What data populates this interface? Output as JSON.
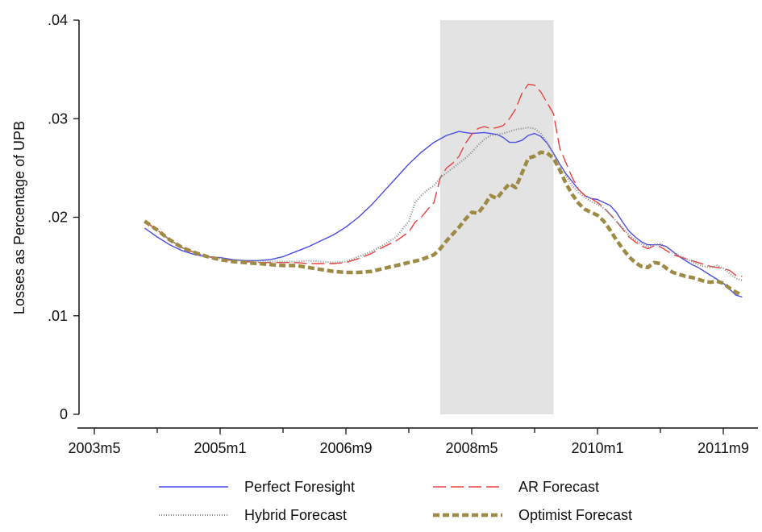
{
  "chart_data": {
    "type": "line",
    "title": "",
    "xlabel": "",
    "ylabel": "Losses as Percentage of UPB",
    "x_ticks": [
      "2003m5",
      "2005m1",
      "2006m9",
      "2008m5",
      "2010m1",
      "2011m9"
    ],
    "x_tick_values": [
      0,
      20,
      40,
      60,
      80,
      100
    ],
    "y_ticks": [
      "0",
      ".01",
      ".02",
      ".03",
      ".04"
    ],
    "y_tick_values": [
      0,
      0.01,
      0.02,
      0.03,
      0.04
    ],
    "xlim": [
      0,
      105.8
    ],
    "ylim": [
      0,
      0.04
    ],
    "grid": false,
    "shaded_period": {
      "start": "2007m12",
      "end": "2009m6",
      "start_index": 55,
      "end_index": 73
    },
    "legend": {
      "position": "bottom",
      "columns": 2
    },
    "colors": {
      "Perfect Foresight": "#4b4be8",
      "AR Forecast": "#e84040",
      "Hybrid Forecast": "#8a8a8a",
      "Optimist Forecast": "#9c8a45",
      "shade": "#e3e3e3"
    },
    "series": [
      {
        "name": "Perfect Foresight",
        "style": "solid",
        "points": [
          [
            8,
            0.0189
          ],
          [
            10,
            0.018
          ],
          [
            12,
            0.0172
          ],
          [
            14,
            0.0166
          ],
          [
            16,
            0.0162
          ],
          [
            18,
            0.016
          ],
          [
            20,
            0.0159
          ],
          [
            22,
            0.0157
          ],
          [
            24,
            0.0156
          ],
          [
            26,
            0.0156
          ],
          [
            28,
            0.0157
          ],
          [
            30,
            0.016
          ],
          [
            32,
            0.0165
          ],
          [
            34,
            0.017
          ],
          [
            36,
            0.0176
          ],
          [
            38,
            0.0182
          ],
          [
            40,
            0.019
          ],
          [
            42,
            0.02
          ],
          [
            44,
            0.0212
          ],
          [
            46,
            0.0226
          ],
          [
            48,
            0.024
          ],
          [
            50,
            0.0254
          ],
          [
            52,
            0.0266
          ],
          [
            54,
            0.0276
          ],
          [
            56,
            0.0283
          ],
          [
            58,
            0.0287
          ],
          [
            59,
            0.0286
          ],
          [
            60,
            0.0285
          ],
          [
            62,
            0.0286
          ],
          [
            64,
            0.0284
          ],
          [
            65,
            0.0281
          ],
          [
            66,
            0.0276
          ],
          [
            67,
            0.0276
          ],
          [
            68,
            0.0278
          ],
          [
            69,
            0.0283
          ],
          [
            70,
            0.0285
          ],
          [
            71,
            0.0282
          ],
          [
            72,
            0.0275
          ],
          [
            73,
            0.0265
          ],
          [
            74,
            0.0254
          ],
          [
            75,
            0.0244
          ],
          [
            76,
            0.0236
          ],
          [
            77,
            0.0228
          ],
          [
            78,
            0.0222
          ],
          [
            79,
            0.0219
          ],
          [
            80,
            0.0218
          ],
          [
            81,
            0.0215
          ],
          [
            82,
            0.0212
          ],
          [
            83,
            0.0205
          ],
          [
            84,
            0.0195
          ],
          [
            85,
            0.0186
          ],
          [
            86,
            0.018
          ],
          [
            87,
            0.0175
          ],
          [
            88,
            0.0172
          ],
          [
            89,
            0.0172
          ],
          [
            90,
            0.0172
          ],
          [
            91,
            0.017
          ],
          [
            92,
            0.0165
          ],
          [
            93,
            0.016
          ],
          [
            94,
            0.0156
          ],
          [
            95,
            0.0152
          ],
          [
            96,
            0.0149
          ],
          [
            97,
            0.0145
          ],
          [
            98,
            0.0141
          ],
          [
            99,
            0.0137
          ],
          [
            100,
            0.0133
          ],
          [
            101,
            0.0127
          ],
          [
            102,
            0.0121
          ],
          [
            103,
            0.0119
          ]
        ]
      },
      {
        "name": "AR Forecast",
        "style": "longdash",
        "points": [
          [
            8,
            0.0196
          ],
          [
            10,
            0.0187
          ],
          [
            12,
            0.0177
          ],
          [
            14,
            0.0169
          ],
          [
            16,
            0.0164
          ],
          [
            18,
            0.016
          ],
          [
            20,
            0.0158
          ],
          [
            22,
            0.0156
          ],
          [
            24,
            0.0155
          ],
          [
            26,
            0.0154
          ],
          [
            28,
            0.0154
          ],
          [
            30,
            0.0154
          ],
          [
            32,
            0.0154
          ],
          [
            34,
            0.0153
          ],
          [
            36,
            0.0153
          ],
          [
            38,
            0.0153
          ],
          [
            40,
            0.0154
          ],
          [
            42,
            0.0158
          ],
          [
            44,
            0.0163
          ],
          [
            46,
            0.017
          ],
          [
            48,
            0.0176
          ],
          [
            50,
            0.0185
          ],
          [
            51,
            0.0195
          ],
          [
            52,
            0.02
          ],
          [
            53,
            0.0208
          ],
          [
            54,
            0.0215
          ],
          [
            55,
            0.024
          ],
          [
            56,
            0.025
          ],
          [
            57,
            0.0255
          ],
          [
            58,
            0.0262
          ],
          [
            59,
            0.0275
          ],
          [
            60,
            0.0284
          ],
          [
            61,
            0.029
          ],
          [
            62,
            0.0292
          ],
          [
            63,
            0.029
          ],
          [
            64,
            0.0291
          ],
          [
            65,
            0.0293
          ],
          [
            66,
            0.03
          ],
          [
            67,
            0.031
          ],
          [
            68,
            0.0326
          ],
          [
            69,
            0.0335
          ],
          [
            70,
            0.0334
          ],
          [
            71,
            0.0327
          ],
          [
            72,
            0.0316
          ],
          [
            73,
            0.0305
          ],
          [
            74,
            0.027
          ],
          [
            75,
            0.0255
          ],
          [
            76,
            0.024
          ],
          [
            77,
            0.0228
          ],
          [
            78,
            0.0222
          ],
          [
            79,
            0.0219
          ],
          [
            80,
            0.0215
          ],
          [
            81,
            0.021
          ],
          [
            82,
            0.0203
          ],
          [
            83,
            0.0196
          ],
          [
            84,
            0.0188
          ],
          [
            85,
            0.018
          ],
          [
            86,
            0.0175
          ],
          [
            87,
            0.0171
          ],
          [
            88,
            0.0168
          ],
          [
            89,
            0.0171
          ],
          [
            90,
            0.017
          ],
          [
            91,
            0.0166
          ],
          [
            92,
            0.0162
          ],
          [
            93,
            0.016
          ],
          [
            94,
            0.0158
          ],
          [
            95,
            0.0156
          ],
          [
            96,
            0.0154
          ],
          [
            97,
            0.0152
          ],
          [
            98,
            0.015
          ],
          [
            99,
            0.0149
          ],
          [
            100,
            0.0148
          ],
          [
            101,
            0.0146
          ],
          [
            102,
            0.0141
          ],
          [
            103,
            0.014
          ]
        ]
      },
      {
        "name": "Hybrid Forecast",
        "style": "dotted",
        "points": [
          [
            8,
            0.0196
          ],
          [
            10,
            0.0187
          ],
          [
            12,
            0.0177
          ],
          [
            14,
            0.0169
          ],
          [
            16,
            0.0164
          ],
          [
            18,
            0.016
          ],
          [
            20,
            0.0158
          ],
          [
            22,
            0.0156
          ],
          [
            24,
            0.0156
          ],
          [
            26,
            0.0155
          ],
          [
            28,
            0.0155
          ],
          [
            30,
            0.0155
          ],
          [
            32,
            0.0155
          ],
          [
            34,
            0.0156
          ],
          [
            36,
            0.0155
          ],
          [
            38,
            0.0154
          ],
          [
            40,
            0.0155
          ],
          [
            42,
            0.016
          ],
          [
            44,
            0.0165
          ],
          [
            46,
            0.0172
          ],
          [
            48,
            0.018
          ],
          [
            50,
            0.0196
          ],
          [
            51,
            0.0215
          ],
          [
            52,
            0.0222
          ],
          [
            53,
            0.0228
          ],
          [
            54,
            0.0232
          ],
          [
            55,
            0.024
          ],
          [
            56,
            0.0245
          ],
          [
            57,
            0.025
          ],
          [
            58,
            0.0255
          ],
          [
            59,
            0.026
          ],
          [
            60,
            0.0266
          ],
          [
            61,
            0.0273
          ],
          [
            62,
            0.0279
          ],
          [
            63,
            0.0283
          ],
          [
            64,
            0.0284
          ],
          [
            65,
            0.0285
          ],
          [
            66,
            0.0287
          ],
          [
            67,
            0.0289
          ],
          [
            68,
            0.029
          ],
          [
            69,
            0.0291
          ],
          [
            70,
            0.029
          ],
          [
            71,
            0.0285
          ],
          [
            72,
            0.0276
          ],
          [
            73,
            0.0264
          ],
          [
            74,
            0.0252
          ],
          [
            75,
            0.0242
          ],
          [
            76,
            0.0232
          ],
          [
            77,
            0.0225
          ],
          [
            78,
            0.022
          ],
          [
            79,
            0.0216
          ],
          [
            80,
            0.0213
          ],
          [
            81,
            0.0209
          ],
          [
            82,
            0.0203
          ],
          [
            83,
            0.0196
          ],
          [
            84,
            0.0189
          ],
          [
            85,
            0.0182
          ],
          [
            86,
            0.0177
          ],
          [
            87,
            0.0173
          ],
          [
            88,
            0.017
          ],
          [
            89,
            0.0172
          ],
          [
            90,
            0.0173
          ],
          [
            91,
            0.017
          ],
          [
            92,
            0.0165
          ],
          [
            93,
            0.0161
          ],
          [
            94,
            0.0158
          ],
          [
            95,
            0.0155
          ],
          [
            96,
            0.0152
          ],
          [
            97,
            0.015
          ],
          [
            98,
            0.0149
          ],
          [
            99,
            0.0151
          ],
          [
            100,
            0.0148
          ],
          [
            101,
            0.0143
          ],
          [
            102,
            0.0138
          ],
          [
            103,
            0.0136
          ]
        ]
      },
      {
        "name": "Optimist Forecast",
        "style": "dashed",
        "points": [
          [
            8,
            0.0196
          ],
          [
            10,
            0.0187
          ],
          [
            12,
            0.0177
          ],
          [
            14,
            0.0169
          ],
          [
            16,
            0.0164
          ],
          [
            18,
            0.016
          ],
          [
            20,
            0.0157
          ],
          [
            22,
            0.0155
          ],
          [
            24,
            0.0154
          ],
          [
            26,
            0.0153
          ],
          [
            28,
            0.0152
          ],
          [
            30,
            0.0151
          ],
          [
            32,
            0.0151
          ],
          [
            34,
            0.0149
          ],
          [
            36,
            0.0147
          ],
          [
            38,
            0.0145
          ],
          [
            40,
            0.0144
          ],
          [
            42,
            0.0144
          ],
          [
            44,
            0.0145
          ],
          [
            46,
            0.0148
          ],
          [
            48,
            0.0151
          ],
          [
            50,
            0.0154
          ],
          [
            52,
            0.0157
          ],
          [
            54,
            0.0162
          ],
          [
            55,
            0.0168
          ],
          [
            56,
            0.0176
          ],
          [
            57,
            0.0183
          ],
          [
            58,
            0.019
          ],
          [
            59,
            0.0198
          ],
          [
            60,
            0.0205
          ],
          [
            61,
            0.0204
          ],
          [
            62,
            0.0212
          ],
          [
            63,
            0.0222
          ],
          [
            64,
            0.0219
          ],
          [
            65,
            0.0227
          ],
          [
            66,
            0.0234
          ],
          [
            67,
            0.023
          ],
          [
            68,
            0.0245
          ],
          [
            69,
            0.026
          ],
          [
            70,
            0.0262
          ],
          [
            71,
            0.0266
          ],
          [
            72,
            0.0265
          ],
          [
            73,
            0.026
          ],
          [
            74,
            0.0248
          ],
          [
            75,
            0.0234
          ],
          [
            76,
            0.0223
          ],
          [
            77,
            0.0214
          ],
          [
            78,
            0.0208
          ],
          [
            79,
            0.0205
          ],
          [
            80,
            0.0202
          ],
          [
            81,
            0.0196
          ],
          [
            82,
            0.0187
          ],
          [
            83,
            0.0177
          ],
          [
            84,
            0.0168
          ],
          [
            85,
            0.016
          ],
          [
            86,
            0.0154
          ],
          [
            87,
            0.015
          ],
          [
            88,
            0.0149
          ],
          [
            89,
            0.0154
          ],
          [
            90,
            0.0153
          ],
          [
            91,
            0.0148
          ],
          [
            92,
            0.0144
          ],
          [
            93,
            0.0142
          ],
          [
            94,
            0.014
          ],
          [
            95,
            0.0139
          ],
          [
            96,
            0.0137
          ],
          [
            97,
            0.0135
          ],
          [
            98,
            0.0134
          ],
          [
            99,
            0.0135
          ],
          [
            100,
            0.0133
          ],
          [
            101,
            0.0128
          ],
          [
            102,
            0.0124
          ],
          [
            103,
            0.0121
          ]
        ]
      }
    ]
  }
}
